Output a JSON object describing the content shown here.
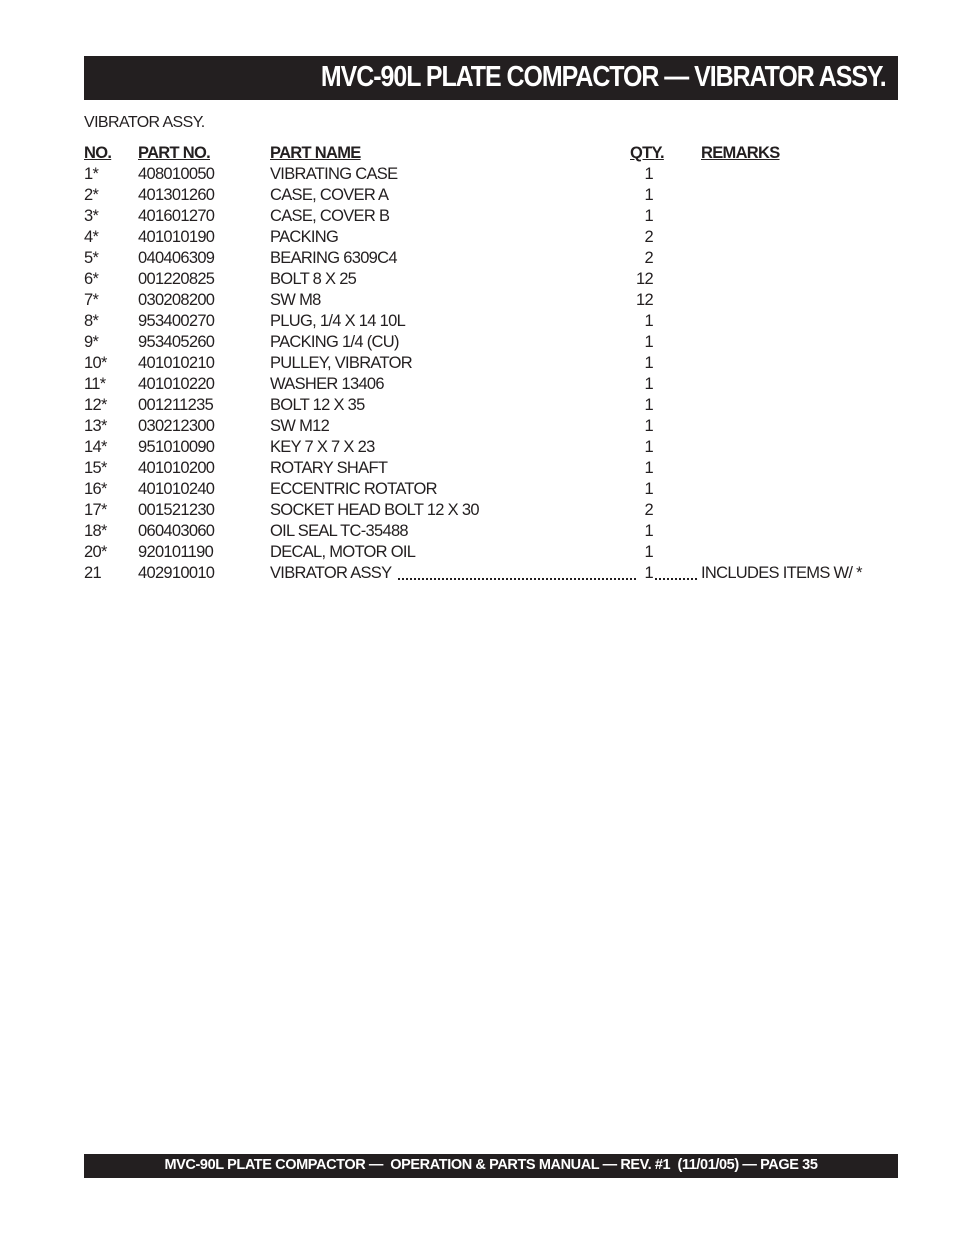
{
  "header": {
    "title": "MVC-90L PLATE COMPACTOR — VIBRATOR ASSY."
  },
  "section_title": "VIBRATOR ASSY.",
  "table": {
    "columns": {
      "no": "NO.",
      "part_no": "PART NO.",
      "part_name": "PART NAME",
      "qty": "QTY.",
      "remarks": "REMARKS"
    },
    "rows": [
      {
        "no": "1*",
        "part_no": "408010050",
        "part_name": "VIBRATING CASE",
        "qty": "1",
        "remarks": ""
      },
      {
        "no": "2*",
        "part_no": "401301260",
        "part_name": "CASE, COVER A",
        "qty": "1",
        "remarks": ""
      },
      {
        "no": "3*",
        "part_no": "401601270",
        "part_name": "CASE, COVER B",
        "qty": "1",
        "remarks": ""
      },
      {
        "no": "4*",
        "part_no": "401010190",
        "part_name": "PACKING",
        "qty": "2",
        "remarks": ""
      },
      {
        "no": "5*",
        "part_no": "040406309",
        "part_name": "BEARING 6309C4",
        "qty": "2",
        "remarks": ""
      },
      {
        "no": "6*",
        "part_no": "001220825",
        "part_name": "BOLT 8 X 25",
        "qty": "12",
        "remarks": ""
      },
      {
        "no": "7*",
        "part_no": "030208200",
        "part_name": "SW M8",
        "qty": "12",
        "remarks": ""
      },
      {
        "no": "8*",
        "part_no": "953400270",
        "part_name": "PLUG, 1/4 X 14 10L",
        "qty": "1",
        "remarks": ""
      },
      {
        "no": "9*",
        "part_no": "953405260",
        "part_name": "PACKING 1/4 (CU)",
        "qty": "1",
        "remarks": ""
      },
      {
        "no": "10*",
        "part_no": "401010210",
        "part_name": "PULLEY, VIBRATOR",
        "qty": "1",
        "remarks": ""
      },
      {
        "no": "11*",
        "part_no": "401010220",
        "part_name": "WASHER 13406",
        "qty": "1",
        "remarks": ""
      },
      {
        "no": "12*",
        "part_no": "001211235",
        "part_name": "BOLT 12 X 35",
        "qty": "1",
        "remarks": ""
      },
      {
        "no": "13*",
        "part_no": "030212300",
        "part_name": "SW M12",
        "qty": "1",
        "remarks": ""
      },
      {
        "no": "14*",
        "part_no": "951010090",
        "part_name": "KEY 7 X 7 X 23",
        "qty": "1",
        "remarks": ""
      },
      {
        "no": "15*",
        "part_no": "401010200",
        "part_name": "ROTARY SHAFT",
        "qty": "1",
        "remarks": ""
      },
      {
        "no": "16*",
        "part_no": "401010240",
        "part_name": "ECCENTRIC ROTATOR",
        "qty": "1",
        "remarks": ""
      },
      {
        "no": "17*",
        "part_no": "001521230",
        "part_name": "SOCKET HEAD BOLT 12 X 30",
        "qty": "2",
        "remarks": ""
      },
      {
        "no": "18*",
        "part_no": "060403060",
        "part_name": "OIL SEAL TC-35488",
        "qty": "1",
        "remarks": ""
      },
      {
        "no": "20*",
        "part_no": "920101190",
        "part_name": "DECAL, MOTOR OIL",
        "qty": "1",
        "remarks": ""
      },
      {
        "no": "21",
        "part_no": "402910010",
        "part_name": "VIBRATOR ASSY",
        "qty": "1",
        "remarks": "INCLUDES ITEMS W/ *"
      }
    ]
  },
  "footer": {
    "text": "MVC-90L PLATE COMPACTOR —  OPERATION & PARTS MANUAL — REV. #1  (11/01/05) — PAGE 35"
  }
}
